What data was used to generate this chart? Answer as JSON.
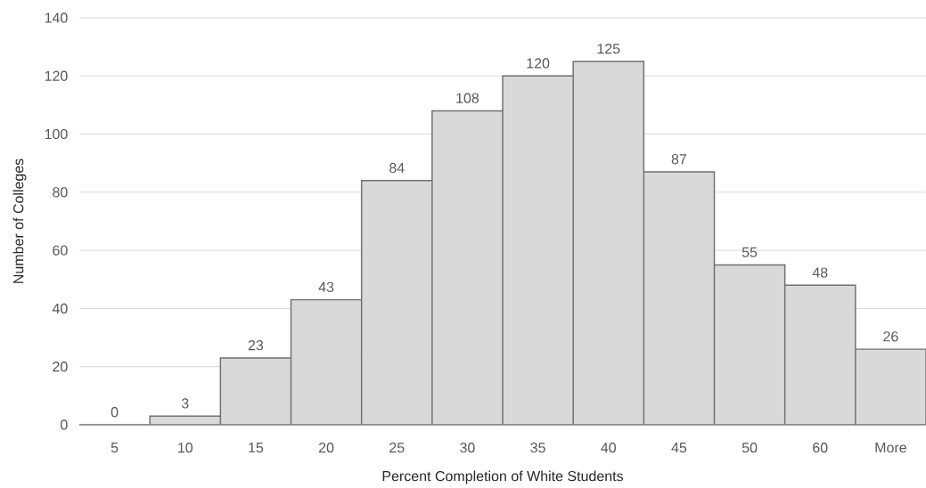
{
  "chart_data": {
    "type": "bar",
    "xlabel": "Percent Completion of White Students",
    "ylabel": "Number of Colleges",
    "categories": [
      "5",
      "10",
      "15",
      "20",
      "25",
      "30",
      "35",
      "40",
      "45",
      "50",
      "60",
      "More"
    ],
    "values": [
      0,
      3,
      23,
      43,
      84,
      108,
      120,
      125,
      87,
      55,
      48,
      26
    ],
    "color": "#d9d9d9",
    "ylim": [
      0,
      140
    ],
    "yticks": [
      0,
      20,
      40,
      60,
      80,
      100,
      120,
      140
    ],
    "grid": "y",
    "data_labels": true
  }
}
